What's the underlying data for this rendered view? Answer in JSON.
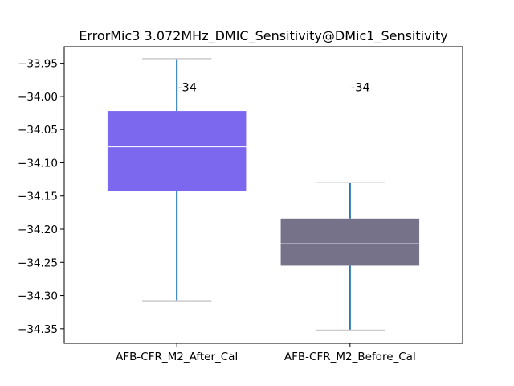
{
  "chart_data": {
    "type": "box",
    "title": "ErrorMic3 3.072MHz_DMIC_Sensitivity@DMic1_Sensitivity",
    "xlabel": "",
    "ylabel": "",
    "ylim": [
      -34.372,
      -33.925
    ],
    "yticks": [
      -33.95,
      -34.0,
      -34.05,
      -34.1,
      -34.15,
      -34.2,
      -34.25,
      -34.3,
      -34.35
    ],
    "ytick_labels": [
      "−33.95",
      "−34.00",
      "−34.05",
      "−34.10",
      "−34.15",
      "−34.20",
      "−34.25",
      "−34.30",
      "−34.35"
    ],
    "categories": [
      "AFB-CFR_M2_After_Cal",
      "AFB-CFR_M2_Before_Cal"
    ],
    "grid": false,
    "series": [
      {
        "whisker_low": -34.308,
        "q1": -34.143,
        "median": -34.076,
        "q3": -34.022,
        "whisker_high": -33.943,
        "color": "#7b68ee",
        "annotation": "-34",
        "annotation_y": -33.992
      },
      {
        "whisker_low": -34.352,
        "q1": -34.255,
        "median": -34.222,
        "q3": -34.184,
        "whisker_high": -34.13,
        "color": "#76728a",
        "annotation": "-34",
        "annotation_y": -33.992
      }
    ],
    "whisker_color": "#1f77b4",
    "cap_color": "#cccccc",
    "median_color": "#ffffff"
  }
}
